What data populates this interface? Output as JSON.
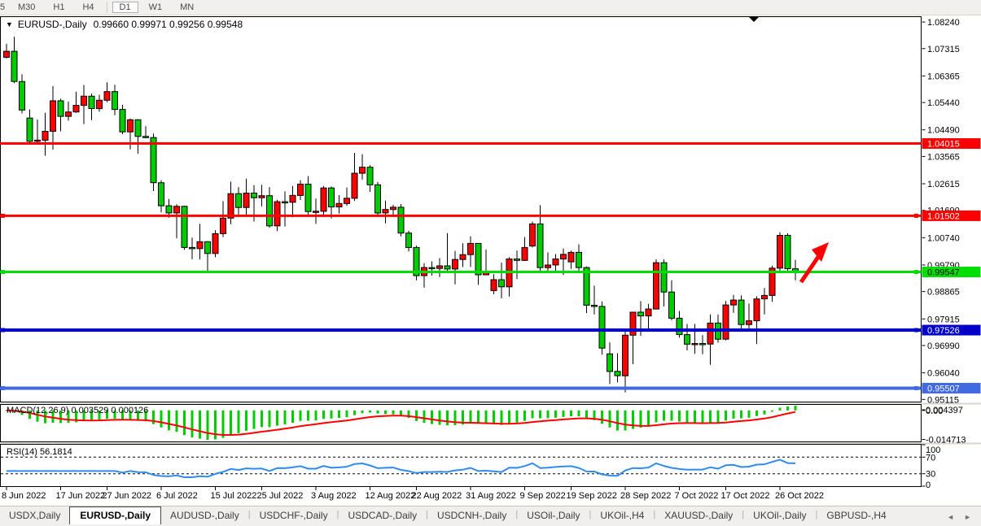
{
  "toolbar": {
    "timeframes": [
      "5",
      "M30",
      "H1",
      "H4",
      "D1",
      "W1",
      "MN"
    ],
    "active_timeframe": "D1"
  },
  "chart": {
    "title": {
      "symbol": "EURUSD-,Daily",
      "ohlc": "0.99660 0.99971 0.99256 0.99548"
    },
    "price_axis": {
      "ticks": [
        "1.08240",
        "1.07315",
        "1.06365",
        "1.05440",
        "1.04490",
        "1.03565",
        "1.02615",
        "1.01690",
        "1.00740",
        "0.99790",
        "0.98865",
        "0.97915",
        "0.96990",
        "0.96040",
        "0.95115"
      ]
    },
    "date_axis": {
      "labels": [
        {
          "text": "8 Jun 2022",
          "i": 0
        },
        {
          "text": "17 Jun 2022",
          "i": 7
        },
        {
          "text": "27 Jun 2022",
          "i": 13
        },
        {
          "text": "6 Jul 2022",
          "i": 20
        },
        {
          "text": "15 Jul 2022",
          "i": 27
        },
        {
          "text": "25 Jul 2022",
          "i": 33
        },
        {
          "text": "3 Aug 2022",
          "i": 40
        },
        {
          "text": "12 Aug 2022",
          "i": 47
        },
        {
          "text": "22 Aug 2022",
          "i": 53
        },
        {
          "text": "31 Aug 2022",
          "i": 60
        },
        {
          "text": "9 Sep 2022",
          "i": 67
        },
        {
          "text": "19 Sep 2022",
          "i": 73
        },
        {
          "text": "28 Sep 2022",
          "i": 80
        },
        {
          "text": "7 Oct 2022",
          "i": 87
        },
        {
          "text": "17 Oct 2022",
          "i": 93
        },
        {
          "text": "26 Oct 2022",
          "i": 100
        }
      ]
    },
    "hlines": [
      {
        "label": "1.04015",
        "price": 1.04015,
        "color": "#ff0000",
        "width": 3,
        "text_color": "#ffffff",
        "handles": false
      },
      {
        "label": "1.01502",
        "price": 1.01502,
        "color": "#ff0000",
        "width": 3,
        "text_color": "#ffffff",
        "handles": true
      },
      {
        "label": "0.99547",
        "price": 0.99547,
        "color": "#00dd00",
        "width": 3,
        "text_color": "#000000",
        "handles": true
      },
      {
        "label": "0.97526",
        "price": 0.97526,
        "color": "#0000c8",
        "width": 4,
        "text_color": "#ffffff",
        "handles": true
      },
      {
        "label": "0.95507",
        "price": 0.95507,
        "color": "#4169e1",
        "width": 4,
        "text_color": "#ffffff",
        "handles": true
      }
    ],
    "arrow_color": "#ff0000"
  },
  "indicators": {
    "macd": {
      "label": "MACD(12,26,9) 0.003529 0.000126",
      "axis_ticks": [
        "0.004397",
        "0.00",
        "-0.014713"
      ],
      "histogram_color": "#00cc00",
      "signal_color": "#ff0000"
    },
    "rsi": {
      "label": "RSI(14) 56.1814",
      "axis_ticks": [
        "100",
        "70",
        "30",
        "0"
      ],
      "levels": [
        70,
        30
      ],
      "line_color": "#2e8cf0"
    }
  },
  "tabs": {
    "items": [
      "USDX,Daily",
      "EURUSD-,Daily",
      "AUDUSD-,Daily",
      "USDCHF-,Daily",
      "USDCAD-,Daily",
      "USDCNH-,Daily",
      "USOil-,Daily",
      "UKOil-,H4",
      "XAUUSD-,Daily",
      "UKOil-,Daily",
      "GBPUSD-,H4"
    ],
    "active": "EURUSD-,Daily",
    "scroll_left": "◄",
    "scroll_right": "►"
  },
  "chart_data": {
    "type": "candlestick",
    "symbol": "EURUSD",
    "timeframe": "Daily",
    "up_color": "#ff0000",
    "down_color": "#00cc00",
    "current_bar": {
      "open": 0.9966,
      "high": 0.99971,
      "low": 0.99256,
      "close": 0.99548
    },
    "ylim": [
      0.949,
      1.0844
    ],
    "candles": [
      [
        "2022-06-08",
        1.0701,
        1.0748,
        1.0697,
        1.0722
      ],
      [
        "2022-06-09",
        1.0722,
        1.0773,
        1.0611,
        1.0617
      ],
      [
        "2022-06-10",
        1.0617,
        1.0642,
        1.0506,
        1.0518
      ],
      [
        "2022-06-13",
        1.049,
        1.052,
        1.0399,
        1.0409
      ],
      [
        "2022-06-14",
        1.0409,
        1.0485,
        1.0397,
        1.0413
      ],
      [
        "2022-06-15",
        1.0413,
        1.0508,
        1.0359,
        1.0444
      ],
      [
        "2022-06-16",
        1.0444,
        1.0601,
        1.038,
        1.055
      ],
      [
        "2022-06-17",
        1.055,
        1.0557,
        1.0444,
        1.0496
      ],
      [
        "2022-06-20",
        1.0496,
        1.0547,
        1.0481,
        1.0511
      ],
      [
        "2022-06-21",
        1.0511,
        1.0582,
        1.0508,
        1.0534
      ],
      [
        "2022-06-22",
        1.0534,
        1.0605,
        1.0469,
        1.0566
      ],
      [
        "2022-06-23",
        1.0566,
        1.0575,
        1.0483,
        1.0523
      ],
      [
        "2022-06-24",
        1.0523,
        1.0571,
        1.0512,
        1.0552
      ],
      [
        "2022-06-27",
        1.0552,
        1.0614,
        1.0545,
        1.0582
      ],
      [
        "2022-06-28",
        1.0582,
        1.0606,
        1.05,
        1.052
      ],
      [
        "2022-06-29",
        1.052,
        1.0536,
        1.0434,
        1.0442
      ],
      [
        "2022-06-30",
        1.0442,
        1.0488,
        1.0381,
        1.0484
      ],
      [
        "2022-07-01",
        1.0484,
        1.0486,
        1.0366,
        1.0426
      ],
      [
        "2022-07-04",
        1.0426,
        1.0462,
        1.042,
        1.0422
      ],
      [
        "2022-07-05",
        1.0422,
        1.0436,
        1.0236,
        1.0265
      ],
      [
        "2022-07-06",
        1.0265,
        1.0274,
        1.0162,
        1.0185
      ],
      [
        "2022-07-07",
        1.0185,
        1.0208,
        1.0144,
        1.016
      ],
      [
        "2022-07-08",
        1.016,
        1.019,
        1.0072,
        1.0183
      ],
      [
        "2022-07-11",
        1.0183,
        1.0185,
        1.0032,
        1.004
      ],
      [
        "2022-07-12",
        1.004,
        1.0074,
        0.9999,
        1.0036
      ],
      [
        "2022-07-13",
        1.0036,
        1.0122,
        0.9998,
        1.006
      ],
      [
        "2022-07-14",
        1.006,
        1.0062,
        0.9952,
        1.0019
      ],
      [
        "2022-07-15",
        1.0019,
        1.01,
        1.0006,
        1.0088
      ],
      [
        "2022-07-18",
        1.0088,
        1.0201,
        1.0076,
        1.0142
      ],
      [
        "2022-07-19",
        1.0142,
        1.0269,
        1.0121,
        1.0227
      ],
      [
        "2022-07-20",
        1.0227,
        1.025,
        1.0155,
        1.0179
      ],
      [
        "2022-07-21",
        1.0179,
        1.0279,
        1.0151,
        1.0229
      ],
      [
        "2022-07-22",
        1.0229,
        1.0257,
        1.013,
        1.0213
      ],
      [
        "2022-07-25",
        1.0213,
        1.0258,
        1.0183,
        1.022
      ],
      [
        "2022-07-26",
        1.022,
        1.025,
        1.0108,
        1.0115
      ],
      [
        "2022-07-27",
        1.0115,
        1.0206,
        1.0097,
        1.0199
      ],
      [
        "2022-07-28",
        1.0199,
        1.0235,
        1.0113,
        1.0197
      ],
      [
        "2022-07-29",
        1.0197,
        1.0254,
        1.0145,
        1.0221
      ],
      [
        "2022-08-01",
        1.0221,
        1.0274,
        1.0205,
        1.026
      ],
      [
        "2022-08-02",
        1.026,
        1.0288,
        1.0155,
        1.0165
      ],
      [
        "2022-08-03",
        1.0165,
        1.021,
        1.0122,
        1.0166
      ],
      [
        "2022-08-04",
        1.0166,
        1.0254,
        1.0151,
        1.0247
      ],
      [
        "2022-08-05",
        1.0247,
        1.0252,
        1.0141,
        1.0181
      ],
      [
        "2022-08-08",
        1.0181,
        1.0222,
        1.0158,
        1.0193
      ],
      [
        "2022-08-09",
        1.0193,
        1.0248,
        1.0185,
        1.0211
      ],
      [
        "2022-08-10",
        1.0211,
        1.0369,
        1.0202,
        1.0298
      ],
      [
        "2022-08-11",
        1.0298,
        1.0364,
        1.0276,
        1.0319
      ],
      [
        "2022-08-12",
        1.0319,
        1.0326,
        1.0233,
        1.0258
      ],
      [
        "2022-08-15",
        1.0258,
        1.0268,
        1.0154,
        1.016
      ],
      [
        "2022-08-16",
        1.016,
        1.0203,
        1.0124,
        1.0172
      ],
      [
        "2022-08-17",
        1.0172,
        1.0188,
        1.0146,
        1.018
      ],
      [
        "2022-08-18",
        1.018,
        1.0191,
        1.0078,
        1.009
      ],
      [
        "2022-08-19",
        1.009,
        1.0098,
        1.0026,
        1.004
      ],
      [
        "2022-08-22",
        1.004,
        1.0046,
        0.9926,
        0.9942
      ],
      [
        "2022-08-23",
        0.9942,
        0.9985,
        0.99,
        0.997
      ],
      [
        "2022-08-24",
        0.997,
        0.9992,
        0.9942,
        0.9967
      ],
      [
        "2022-08-25",
        0.9967,
        1.0003,
        0.9937,
        0.9976
      ],
      [
        "2022-08-26",
        0.9976,
        1.009,
        0.9957,
        0.9965
      ],
      [
        "2022-08-29",
        0.9965,
        1.0028,
        0.9912,
        0.9998
      ],
      [
        "2022-08-30",
        0.9998,
        1.0055,
        0.9972,
        1.0015
      ],
      [
        "2022-08-31",
        1.0015,
        1.0079,
        0.9972,
        1.0054
      ],
      [
        "2022-09-01",
        1.0054,
        1.0055,
        0.991,
        0.9945
      ],
      [
        "2022-09-02",
        0.9945,
        1.0033,
        0.9944,
        0.9952
      ],
      [
        "2022-09-05",
        0.989,
        0.9947,
        0.9878,
        0.9928
      ],
      [
        "2022-09-06",
        0.9928,
        0.9987,
        0.9863,
        0.9903
      ],
      [
        "2022-09-07",
        0.9903,
        1.0006,
        0.9869,
        1.0
      ],
      [
        "2022-09-08",
        1.0,
        1.0029,
        0.993,
        0.9995
      ],
      [
        "2022-09-09",
        0.9995,
        1.0076,
        0.9993,
        1.004
      ],
      [
        "2022-09-12",
        1.0045,
        1.013,
        1.004,
        1.0122
      ],
      [
        "2022-09-13",
        1.0122,
        1.0187,
        0.9958,
        0.997
      ],
      [
        "2022-09-14",
        0.997,
        1.0023,
        0.9955,
        0.9979
      ],
      [
        "2022-09-15",
        0.9979,
        1.0017,
        0.9954,
        1.0
      ],
      [
        "2022-09-16",
        1.0,
        1.0036,
        0.9944,
        1.0016
      ],
      [
        "2022-09-19",
        0.999,
        1.0029,
        0.9965,
        1.0023
      ],
      [
        "2022-09-20",
        1.0023,
        1.0051,
        0.9954,
        0.997
      ],
      [
        "2022-09-21",
        0.997,
        0.9974,
        0.9812,
        0.9839
      ],
      [
        "2022-09-22",
        0.9839,
        0.9907,
        0.9807,
        0.9835
      ],
      [
        "2022-09-23",
        0.9835,
        0.9852,
        0.9667,
        0.969
      ],
      [
        "2022-09-26",
        0.967,
        0.971,
        0.9565,
        0.9609
      ],
      [
        "2022-09-27",
        0.9609,
        0.9672,
        0.9571,
        0.9594
      ],
      [
        "2022-09-28",
        0.9594,
        0.975,
        0.9536,
        0.9735
      ],
      [
        "2022-09-29",
        0.9735,
        0.9816,
        0.9634,
        0.9815
      ],
      [
        "2022-09-30",
        0.9815,
        0.9853,
        0.9733,
        0.9802
      ],
      [
        "2022-10-03",
        0.9802,
        0.9844,
        0.9751,
        0.9826
      ],
      [
        "2022-10-04",
        0.9826,
        0.9999,
        0.9825,
        0.9987
      ],
      [
        "2022-10-05",
        0.9987,
        0.9999,
        0.9835,
        0.9885
      ],
      [
        "2022-10-06",
        0.9885,
        0.9926,
        0.9787,
        0.9794
      ],
      [
        "2022-10-07",
        0.9794,
        0.9819,
        0.9726,
        0.9737
      ],
      [
        "2022-10-10",
        0.9737,
        0.9774,
        0.9682,
        0.9704
      ],
      [
        "2022-10-11",
        0.9704,
        0.9774,
        0.967,
        0.9706
      ],
      [
        "2022-10-12",
        0.9706,
        0.9735,
        0.9669,
        0.9704
      ],
      [
        "2022-10-13",
        0.9704,
        0.9807,
        0.9632,
        0.9777
      ],
      [
        "2022-10-14",
        0.9777,
        0.9807,
        0.9709,
        0.9721
      ],
      [
        "2022-10-17",
        0.9721,
        0.9854,
        0.9717,
        0.984
      ],
      [
        "2022-10-18",
        0.984,
        0.9875,
        0.9813,
        0.9857
      ],
      [
        "2022-10-19",
        0.9857,
        0.9873,
        0.9755,
        0.9772
      ],
      [
        "2022-10-20",
        0.9772,
        0.9845,
        0.9756,
        0.9785
      ],
      [
        "2022-10-21",
        0.9785,
        0.987,
        0.9704,
        0.9861
      ],
      [
        "2022-10-24",
        0.9861,
        0.9899,
        0.9807,
        0.9873
      ],
      [
        "2022-10-25",
        0.9873,
        0.9977,
        0.9851,
        0.9968
      ],
      [
        "2022-10-26",
        0.9968,
        1.0093,
        0.9952,
        1.0082
      ],
      [
        "2022-10-27",
        1.0082,
        1.0089,
        0.9959,
        0.9966
      ],
      [
        "2022-10-28",
        0.9966,
        0.99971,
        0.99256,
        0.99548
      ]
    ]
  }
}
